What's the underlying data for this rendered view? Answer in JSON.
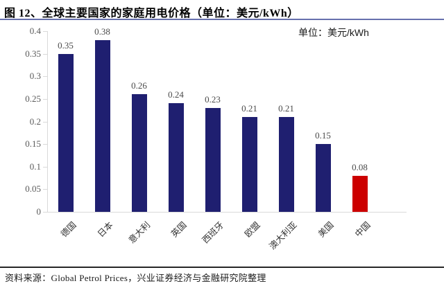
{
  "header": {
    "title": "图 12、全球主要国家的家庭用电价格（单位：美元/kWh）"
  },
  "chart_data": {
    "type": "bar",
    "title": "全球主要国家的家庭用电价格",
    "unit_label": "单位：美元/kWh",
    "categories": [
      "德国",
      "日本",
      "意大利",
      "英国",
      "西班牙",
      "欧盟",
      "澳大利亚",
      "美国",
      "中国"
    ],
    "values": [
      0.35,
      0.38,
      0.26,
      0.24,
      0.23,
      0.21,
      0.21,
      0.15,
      0.08
    ],
    "data_labels": [
      "0.35",
      "0.38",
      "0.26",
      "0.24",
      "0.23",
      "0.21",
      "0.21",
      "0.15",
      "0.08"
    ],
    "xlabel": "",
    "ylabel": "",
    "ylim": [
      0,
      0.4
    ],
    "yticks": [
      0,
      0.05,
      0.1,
      0.15,
      0.2,
      0.25,
      0.3,
      0.35,
      0.4
    ],
    "grid": false,
    "legend_position": "top-right",
    "bar_color": "#1F1F70",
    "highlight_index": 8,
    "highlight_color": "#CC0000",
    "axis_color": "#D9D9D9"
  },
  "colors": {
    "title_rule": "#6670AD",
    "footer_rule": "#262626"
  },
  "footer": {
    "source": "资料来源：Global Petrol Prices，兴业证券经济与金融研究院整理"
  }
}
